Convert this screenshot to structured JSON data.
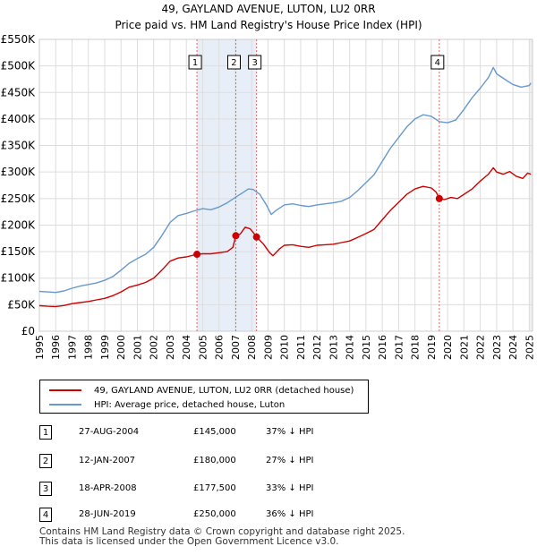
{
  "title": "49, GAYLAND AVENUE, LUTON, LU2 0RR",
  "subtitle": "Price paid vs. HM Land Registry's House Price Index (HPI)",
  "colors": {
    "property": "#cc0000",
    "hpi": "#6699cc",
    "shade": "#e8eef8",
    "grid": "#dddddd",
    "marker_line": "#e06666"
  },
  "chart_data": {
    "type": "line",
    "title": "49, GAYLAND AVENUE, LUTON, LU2 0RR",
    "subtitle": "Price paid vs. HM Land Registry's House Price Index (HPI)",
    "xlim": [
      1995,
      2025.2
    ],
    "ylim": [
      0,
      550000
    ],
    "y_ticks": [
      {
        "value": 0,
        "label": "£0"
      },
      {
        "value": 50000,
        "label": "£50K"
      },
      {
        "value": 100000,
        "label": "£100K"
      },
      {
        "value": 150000,
        "label": "£150K"
      },
      {
        "value": 200000,
        "label": "£200K"
      },
      {
        "value": 250000,
        "label": "£250K"
      },
      {
        "value": 300000,
        "label": "£300K"
      },
      {
        "value": 350000,
        "label": "£350K"
      },
      {
        "value": 400000,
        "label": "£400K"
      },
      {
        "value": 450000,
        "label": "£450K"
      },
      {
        "value": 500000,
        "label": "£500K"
      },
      {
        "value": 550000,
        "label": "£550K"
      }
    ],
    "x_ticks": [
      "1995",
      "1996",
      "1997",
      "1998",
      "1999",
      "2000",
      "2001",
      "2002",
      "2003",
      "2004",
      "2005",
      "2006",
      "2007",
      "2008",
      "2009",
      "2010",
      "2011",
      "2012",
      "2013",
      "2014",
      "2015",
      "2016",
      "2017",
      "2018",
      "2019",
      "2020",
      "2021",
      "2022",
      "2023",
      "2024",
      "2025"
    ],
    "shaded_ranges": [
      [
        2004.65,
        2008.3
      ]
    ],
    "series": [
      {
        "name": "49, GAYLAND AVENUE, LUTON, LU2 0RR (detached house)",
        "color": "#cc0000",
        "points": [
          [
            1995.0,
            48000
          ],
          [
            1995.5,
            47000
          ],
          [
            1996.0,
            46500
          ],
          [
            1996.5,
            48500
          ],
          [
            1997.0,
            52000
          ],
          [
            1997.5,
            54000
          ],
          [
            1998.0,
            56000
          ],
          [
            1998.5,
            59000
          ],
          [
            1999.0,
            62000
          ],
          [
            1999.5,
            67000
          ],
          [
            2000.0,
            74000
          ],
          [
            2000.5,
            83000
          ],
          [
            2001.0,
            87000
          ],
          [
            2001.5,
            92000
          ],
          [
            2002.0,
            100000
          ],
          [
            2002.5,
            115000
          ],
          [
            2003.0,
            132000
          ],
          [
            2003.5,
            138000
          ],
          [
            2004.0,
            140000
          ],
          [
            2004.65,
            145000
          ],
          [
            2005.0,
            146000
          ],
          [
            2005.5,
            146000
          ],
          [
            2006.0,
            148000
          ],
          [
            2006.5,
            150000
          ],
          [
            2006.85,
            158000
          ],
          [
            2007.03,
            180000
          ],
          [
            2007.3,
            183000
          ],
          [
            2007.6,
            196000
          ],
          [
            2007.9,
            193000
          ],
          [
            2008.1,
            186000
          ],
          [
            2008.3,
            177500
          ],
          [
            2008.7,
            165000
          ],
          [
            2009.1,
            148000
          ],
          [
            2009.3,
            142000
          ],
          [
            2009.7,
            155000
          ],
          [
            2010.0,
            162000
          ],
          [
            2010.5,
            163000
          ],
          [
            2011.0,
            160000
          ],
          [
            2011.5,
            158000
          ],
          [
            2012.0,
            162000
          ],
          [
            2012.5,
            163000
          ],
          [
            2013.0,
            164000
          ],
          [
            2013.5,
            167000
          ],
          [
            2014.0,
            170000
          ],
          [
            2014.5,
            177000
          ],
          [
            2015.0,
            184000
          ],
          [
            2015.5,
            192000
          ],
          [
            2016.0,
            210000
          ],
          [
            2016.5,
            228000
          ],
          [
            2017.0,
            243000
          ],
          [
            2017.5,
            258000
          ],
          [
            2018.0,
            268000
          ],
          [
            2018.5,
            273000
          ],
          [
            2019.0,
            270000
          ],
          [
            2019.3,
            262000
          ],
          [
            2019.49,
            250000
          ],
          [
            2019.8,
            248000
          ],
          [
            2020.2,
            252000
          ],
          [
            2020.6,
            250000
          ],
          [
            2021.0,
            258000
          ],
          [
            2021.5,
            268000
          ],
          [
            2022.0,
            283000
          ],
          [
            2022.5,
            296000
          ],
          [
            2022.8,
            308000
          ],
          [
            2023.0,
            300000
          ],
          [
            2023.4,
            296000
          ],
          [
            2023.8,
            301000
          ],
          [
            2024.2,
            292000
          ],
          [
            2024.6,
            288000
          ],
          [
            2024.9,
            298000
          ],
          [
            2025.1,
            296000
          ]
        ]
      },
      {
        "name": "HPI: Average price, detached house, Luton",
        "color": "#6699cc",
        "points": [
          [
            1995.0,
            75000
          ],
          [
            1995.5,
            74000
          ],
          [
            1996.0,
            73000
          ],
          [
            1996.5,
            76000
          ],
          [
            1997.0,
            81000
          ],
          [
            1997.5,
            85000
          ],
          [
            1998.0,
            88000
          ],
          [
            1998.5,
            91000
          ],
          [
            1999.0,
            96000
          ],
          [
            1999.5,
            103000
          ],
          [
            2000.0,
            115000
          ],
          [
            2000.5,
            128000
          ],
          [
            2001.0,
            137000
          ],
          [
            2001.5,
            145000
          ],
          [
            2002.0,
            158000
          ],
          [
            2002.5,
            180000
          ],
          [
            2003.0,
            205000
          ],
          [
            2003.5,
            218000
          ],
          [
            2004.0,
            222000
          ],
          [
            2004.5,
            227000
          ],
          [
            2005.0,
            231000
          ],
          [
            2005.5,
            229000
          ],
          [
            2006.0,
            234000
          ],
          [
            2006.5,
            242000
          ],
          [
            2007.0,
            252000
          ],
          [
            2007.5,
            262000
          ],
          [
            2007.8,
            268000
          ],
          [
            2008.1,
            267000
          ],
          [
            2008.5,
            258000
          ],
          [
            2008.9,
            238000
          ],
          [
            2009.2,
            220000
          ],
          [
            2009.5,
            228000
          ],
          [
            2010.0,
            238000
          ],
          [
            2010.5,
            240000
          ],
          [
            2011.0,
            237000
          ],
          [
            2011.5,
            235000
          ],
          [
            2012.0,
            238000
          ],
          [
            2012.5,
            240000
          ],
          [
            2013.0,
            242000
          ],
          [
            2013.5,
            245000
          ],
          [
            2014.0,
            252000
          ],
          [
            2014.5,
            265000
          ],
          [
            2015.0,
            280000
          ],
          [
            2015.5,
            295000
          ],
          [
            2016.0,
            320000
          ],
          [
            2016.5,
            345000
          ],
          [
            2017.0,
            365000
          ],
          [
            2017.5,
            385000
          ],
          [
            2018.0,
            400000
          ],
          [
            2018.5,
            408000
          ],
          [
            2019.0,
            405000
          ],
          [
            2019.5,
            395000
          ],
          [
            2020.0,
            393000
          ],
          [
            2020.5,
            398000
          ],
          [
            2021.0,
            418000
          ],
          [
            2021.5,
            440000
          ],
          [
            2022.0,
            458000
          ],
          [
            2022.5,
            478000
          ],
          [
            2022.8,
            497000
          ],
          [
            2023.0,
            485000
          ],
          [
            2023.5,
            475000
          ],
          [
            2024.0,
            465000
          ],
          [
            2024.5,
            460000
          ],
          [
            2025.0,
            463000
          ],
          [
            2025.1,
            468000
          ]
        ]
      }
    ],
    "sales": [
      {
        "id": "1",
        "x": 2004.65,
        "price": 145000
      },
      {
        "id": "2",
        "x": 2007.03,
        "price": 180000
      },
      {
        "id": "3",
        "x": 2008.3,
        "price": 177500
      },
      {
        "id": "4",
        "x": 2019.49,
        "price": 250000
      }
    ]
  },
  "legend": [
    {
      "label": "49, GAYLAND AVENUE, LUTON, LU2 0RR (detached house)",
      "color": "#cc0000"
    },
    {
      "label": "HPI: Average price, detached house, Luton",
      "color": "#6699cc"
    }
  ],
  "transactions": [
    {
      "num": "1",
      "date": "27-AUG-2004",
      "price": "£145,000",
      "hpi": "37% ↓ HPI"
    },
    {
      "num": "2",
      "date": "12-JAN-2007",
      "price": "£180,000",
      "hpi": "27% ↓ HPI"
    },
    {
      "num": "3",
      "date": "18-APR-2008",
      "price": "£177,500",
      "hpi": "33% ↓ HPI"
    },
    {
      "num": "4",
      "date": "28-JUN-2019",
      "price": "£250,000",
      "hpi": "36% ↓ HPI"
    }
  ],
  "footer": {
    "line1": "Contains HM Land Registry data © Crown copyright and database right 2025.",
    "line2": "This data is licensed under the Open Government Licence v3.0."
  }
}
